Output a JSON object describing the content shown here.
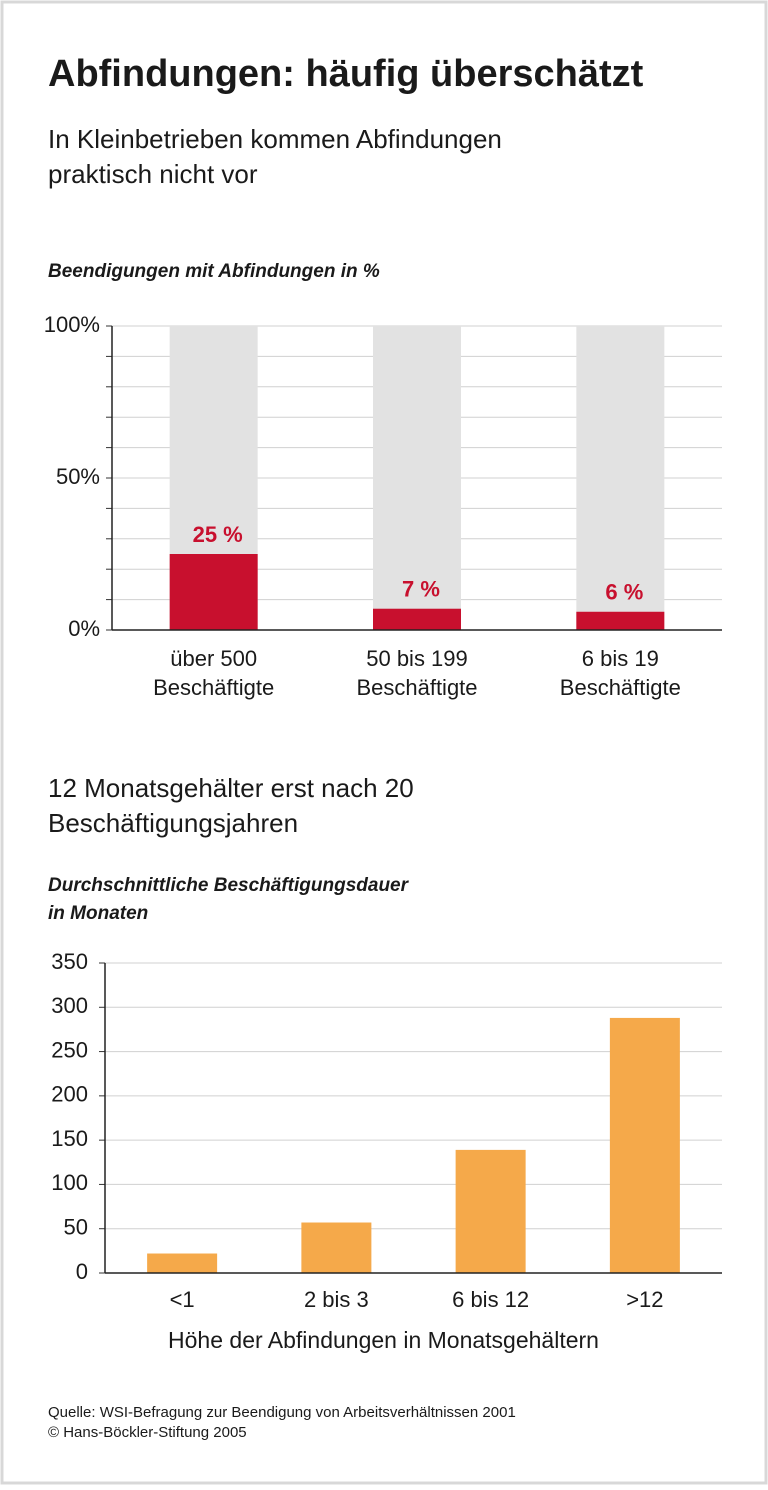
{
  "title": "Abfindungen: häufig überschätzt",
  "subtitle": [
    "In Kleinbetrieben kommen Abfindungen",
    "praktisch nicht vor"
  ],
  "chart_data": [
    {
      "type": "bar",
      "y_label": [
        "Beendigungen mit Abfindungen in %"
      ],
      "categories": [
        [
          "über 500",
          "Beschäftigte"
        ],
        [
          "50 bis 199",
          "Beschäftigte"
        ],
        [
          "6 bis 19",
          "Beschäftigte"
        ]
      ],
      "values": [
        25,
        7,
        6
      ],
      "value_labels": [
        "25 %",
        "7 %",
        "6 %"
      ],
      "color": "#c8102e",
      "track": true,
      "track_color": "#e2e2e2",
      "ylim": [
        0,
        100
      ],
      "yticks": [
        {
          "value": 0,
          "label": "0%"
        },
        {
          "value": 50,
          "label": "50%"
        },
        {
          "value": 100,
          "label": "100%"
        }
      ],
      "minor_yticks": [
        10,
        20,
        30,
        40,
        60,
        70,
        80,
        90
      ],
      "grid": true
    },
    {
      "type": "bar",
      "title": [
        "12 Monatsgehälter erst nach 20",
        "Beschäftigungsjahren"
      ],
      "y_label": [
        "Durchschnittliche Beschäftigungsdauer",
        "in Monaten"
      ],
      "x_label": "Höhe der Abfindungen in Monatsgehältern",
      "categories": [
        [
          "<1"
        ],
        [
          "2 bis 3"
        ],
        [
          "6 bis 12"
        ],
        [
          ">12"
        ]
      ],
      "values": [
        22,
        57,
        139,
        288
      ],
      "color": "#f5a94a",
      "ylim": [
        0,
        350
      ],
      "yticks": [
        0,
        50,
        100,
        150,
        200,
        250,
        300,
        350
      ],
      "grid": true
    }
  ],
  "source": [
    "Quelle: WSI-Befragung zur Beendigung von Arbeitsverhältnissen 2001",
    "© Hans-Böckler-Stiftung 2005"
  ]
}
